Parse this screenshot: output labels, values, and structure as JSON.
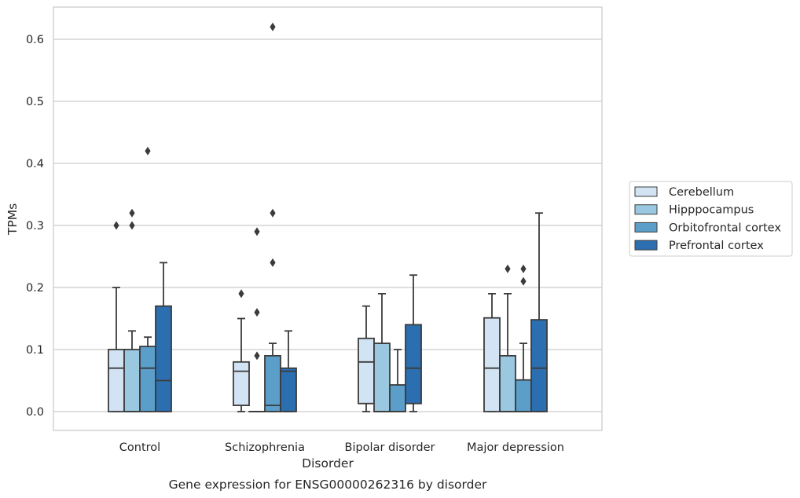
{
  "chart_data": {
    "type": "box",
    "caption": "Gene expression for ENSG00000262316 by disorder",
    "xlabel": "Disorder",
    "ylabel": "TPMs",
    "ylim": [
      -0.03,
      0.655
    ],
    "yticks": [
      0.0,
      0.1,
      0.2,
      0.3,
      0.4,
      0.5,
      0.6
    ],
    "ytick_labels": [
      "0.0",
      "0.1",
      "0.2",
      "0.3",
      "0.4",
      "0.5",
      "0.6"
    ],
    "grid": "horizontal",
    "legend_position": "right",
    "categories": [
      "Control",
      "Schizophrenia",
      "Bipolar disorder",
      "Major depression"
    ],
    "series": [
      {
        "name": "Cerebellum",
        "color": "#d2e3f3",
        "boxes": [
          {
            "whisker_low": 0.0,
            "q1": 0.0,
            "median": 0.07,
            "q3": 0.1,
            "whisker_high": 0.2,
            "outliers": [
              0.3
            ]
          },
          {
            "whisker_low": 0.0,
            "q1": 0.01,
            "median": 0.065,
            "q3": 0.08,
            "whisker_high": 0.15,
            "outliers": [
              0.19
            ]
          },
          {
            "whisker_low": 0.0,
            "q1": 0.013,
            "median": 0.08,
            "q3": 0.118,
            "whisker_high": 0.17,
            "outliers": []
          },
          {
            "whisker_low": 0.0,
            "q1": 0.0,
            "median": 0.07,
            "q3": 0.151,
            "whisker_high": 0.19,
            "outliers": []
          }
        ]
      },
      {
        "name": "Hipppocampus",
        "color": "#9ac8e0",
        "boxes": [
          {
            "whisker_low": 0.0,
            "q1": 0.0,
            "median": 0.0,
            "q3": 0.1,
            "whisker_high": 0.13,
            "outliers": [
              0.3,
              0.32
            ]
          },
          {
            "whisker_low": 0.0,
            "q1": 0.0,
            "median": 0.0,
            "q3": 0.0,
            "whisker_high": 0.0,
            "outliers": [
              0.09,
              0.16,
              0.29
            ]
          },
          {
            "whisker_low": 0.0,
            "q1": 0.0,
            "median": 0.0,
            "q3": 0.11,
            "whisker_high": 0.19,
            "outliers": []
          },
          {
            "whisker_low": 0.0,
            "q1": 0.0,
            "median": 0.0,
            "q3": 0.09,
            "whisker_high": 0.19,
            "outliers": [
              0.23
            ]
          }
        ]
      },
      {
        "name": "Orbitofrontal cortex",
        "color": "#5a9ec9",
        "boxes": [
          {
            "whisker_low": 0.0,
            "q1": 0.0,
            "median": 0.07,
            "q3": 0.105,
            "whisker_high": 0.12,
            "outliers": [
              0.42
            ]
          },
          {
            "whisker_low": 0.0,
            "q1": 0.0,
            "median": 0.01,
            "q3": 0.09,
            "whisker_high": 0.11,
            "outliers": [
              0.24,
              0.32,
              0.62
            ]
          },
          {
            "whisker_low": 0.0,
            "q1": 0.0,
            "median": 0.0,
            "q3": 0.043,
            "whisker_high": 0.1,
            "outliers": []
          },
          {
            "whisker_low": 0.0,
            "q1": 0.0,
            "median": 0.0,
            "q3": 0.051,
            "whisker_high": 0.11,
            "outliers": [
              0.21,
              0.23
            ]
          }
        ]
      },
      {
        "name": "Prefrontal cortex",
        "color": "#2c6fb0",
        "boxes": [
          {
            "whisker_low": 0.0,
            "q1": 0.0,
            "median": 0.05,
            "q3": 0.17,
            "whisker_high": 0.24,
            "outliers": []
          },
          {
            "whisker_low": 0.0,
            "q1": 0.0,
            "median": 0.065,
            "q3": 0.07,
            "whisker_high": 0.13,
            "outliers": []
          },
          {
            "whisker_low": 0.0,
            "q1": 0.013,
            "median": 0.07,
            "q3": 0.14,
            "whisker_high": 0.22,
            "outliers": []
          },
          {
            "whisker_low": 0.0,
            "q1": 0.0,
            "median": 0.07,
            "q3": 0.148,
            "whisker_high": 0.32,
            "outliers": []
          }
        ]
      }
    ]
  }
}
